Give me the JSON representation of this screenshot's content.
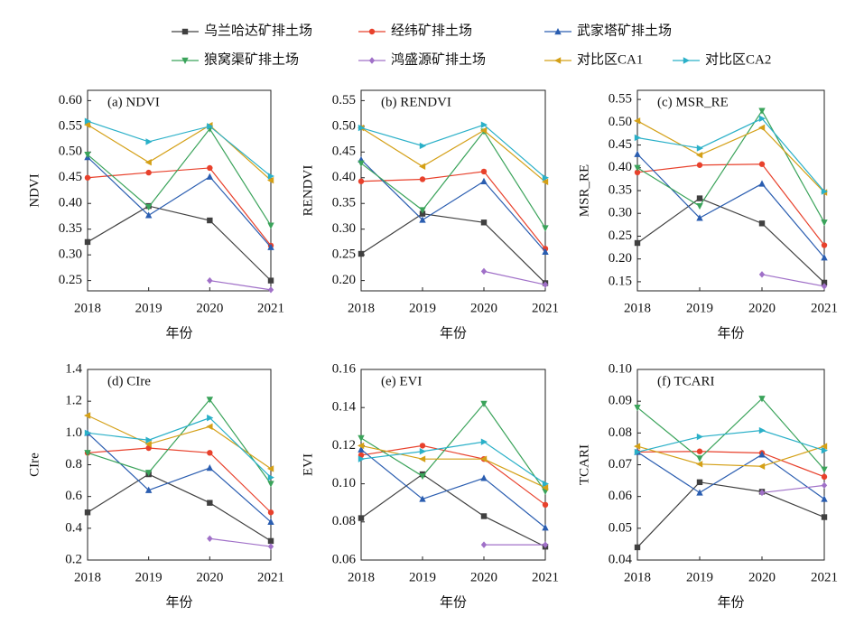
{
  "chart_data": [
    {
      "type": "line",
      "title": "(a) NDVI",
      "ylabel": "NDVI",
      "xlabel": "年份",
      "categories": [
        "2018",
        "2019",
        "2020",
        "2021"
      ],
      "ylim": [
        0.23,
        0.62
      ],
      "yticks": [
        0.25,
        {
          "value": 0.3,
          "label": "0.30"
        },
        0.35,
        {
          "value": 0.4,
          "label": "0.40"
        },
        0.45,
        {
          "value": 0.5,
          "label": "0.50"
        },
        0.55,
        {
          "value": 0.6,
          "label": "0.60"
        }
      ],
      "series": [
        {
          "name": "乌兰哈达矿排土场",
          "color": "#404040",
          "values": [
            0.325,
            0.395,
            0.367,
            0.25
          ]
        },
        {
          "name": "经纬矿排土场",
          "color": "#e8412c",
          "values": [
            0.45,
            0.46,
            0.469,
            0.318
          ]
        },
        {
          "name": "武家塔矿排土场",
          "color": "#2a5db0",
          "values": [
            0.49,
            0.377,
            0.452,
            0.315
          ]
        },
        {
          "name": "狼窝渠矿排土场",
          "color": "#3aa35a",
          "values": [
            0.495,
            0.393,
            0.545,
            0.357
          ]
        },
        {
          "name": "鸿盛源矿排土场",
          "color": "#a070c8",
          "values": [
            null,
            null,
            0.25,
            0.232
          ]
        },
        {
          "name": "对比区CA1",
          "color": "#d4a017",
          "values": [
            0.553,
            0.48,
            0.552,
            0.445
          ]
        },
        {
          "name": "对比区CA2",
          "color": "#2ab0c8",
          "values": [
            0.56,
            0.52,
            0.55,
            0.453
          ]
        }
      ]
    },
    {
      "type": "line",
      "title": "(b) RENDVI",
      "ylabel": "RENDVI",
      "xlabel": "年份",
      "categories": [
        "2018",
        "2019",
        "2020",
        "2021"
      ],
      "ylim": [
        0.18,
        0.57
      ],
      "yticks": [
        {
          "value": 0.2,
          "label": "0.20"
        },
        0.25,
        {
          "value": 0.3,
          "label": "0.30"
        },
        0.35,
        {
          "value": 0.4,
          "label": "0.40"
        },
        0.45,
        {
          "value": 0.5,
          "label": "0.50"
        },
        0.55
      ],
      "series": [
        {
          "color": "#404040",
          "values": [
            0.252,
            0.33,
            0.313,
            0.195
          ]
        },
        {
          "color": "#e8412c",
          "values": [
            0.393,
            0.397,
            0.412,
            0.262
          ]
        },
        {
          "color": "#2a5db0",
          "values": [
            0.435,
            0.318,
            0.393,
            0.256
          ]
        },
        {
          "color": "#3aa35a",
          "values": [
            0.428,
            0.337,
            0.49,
            0.302
          ]
        },
        {
          "color": "#a070c8",
          "values": [
            null,
            null,
            0.218,
            0.192
          ]
        },
        {
          "color": "#d4a017",
          "values": [
            0.497,
            0.422,
            0.492,
            0.392
          ]
        },
        {
          "color": "#2ab0c8",
          "values": [
            0.497,
            0.462,
            0.503,
            0.4
          ]
        }
      ]
    },
    {
      "type": "line",
      "title": "(c) MSR_RE",
      "ylabel": "MSR_RE",
      "xlabel": "年份",
      "categories": [
        "2018",
        "2019",
        "2020",
        "2021"
      ],
      "ylim": [
        0.13,
        0.57
      ],
      "yticks": [
        0.15,
        {
          "value": 0.2,
          "label": "0.20"
        },
        0.25,
        {
          "value": 0.3,
          "label": "0.30"
        },
        0.35,
        {
          "value": 0.4,
          "label": "0.40"
        },
        0.45,
        {
          "value": 0.5,
          "label": "0.50"
        },
        0.55
      ],
      "series": [
        {
          "color": "#404040",
          "values": [
            0.235,
            0.333,
            0.278,
            0.148
          ]
        },
        {
          "color": "#e8412c",
          "values": [
            0.39,
            0.406,
            0.408,
            0.23
          ]
        },
        {
          "color": "#2a5db0",
          "values": [
            0.43,
            0.29,
            0.365,
            0.203
          ]
        },
        {
          "color": "#3aa35a",
          "values": [
            0.4,
            0.316,
            0.525,
            0.28
          ]
        },
        {
          "color": "#a070c8",
          "values": [
            null,
            null,
            0.166,
            0.14
          ]
        },
        {
          "color": "#d4a017",
          "values": [
            0.503,
            0.428,
            0.488,
            0.346
          ]
        },
        {
          "color": "#2ab0c8",
          "values": [
            0.466,
            0.443,
            0.508,
            0.348
          ]
        }
      ]
    },
    {
      "type": "line",
      "title": "(d) CIre",
      "ylabel": "CIre",
      "xlabel": "年份",
      "categories": [
        "2018",
        "2019",
        "2020",
        "2021"
      ],
      "ylim": [
        0.2,
        1.4
      ],
      "yticks": [
        0.2,
        0.4,
        0.6,
        0.8,
        {
          "value": 1,
          "label": "1.0"
        },
        1.2,
        1.4
      ],
      "series": [
        {
          "color": "#404040",
          "values": [
            0.5,
            0.74,
            0.56,
            0.32
          ]
        },
        {
          "color": "#e8412c",
          "values": [
            0.875,
            0.905,
            0.875,
            0.5
          ]
        },
        {
          "color": "#2a5db0",
          "values": [
            1.0,
            0.64,
            0.78,
            0.44
          ]
        },
        {
          "color": "#3aa35a",
          "values": [
            0.875,
            0.75,
            1.21,
            0.68
          ]
        },
        {
          "color": "#a070c8",
          "values": [
            null,
            null,
            0.335,
            0.285
          ]
        },
        {
          "color": "#d4a017",
          "values": [
            1.11,
            0.93,
            1.04,
            0.775
          ]
        },
        {
          "color": "#2ab0c8",
          "values": [
            1.0,
            0.955,
            1.095,
            0.72
          ]
        }
      ]
    },
    {
      "type": "line",
      "title": "(e) EVI",
      "ylabel": "EVI",
      "xlabel": "年份",
      "categories": [
        "2018",
        "2019",
        "2020",
        "2021"
      ],
      "ylim": [
        0.06,
        0.16
      ],
      "yticks": [
        0.06,
        0.08,
        {
          "value": 0.1,
          "label": "0.10"
        },
        0.12,
        0.14,
        0.16
      ],
      "series": [
        {
          "color": "#404040",
          "values": [
            0.082,
            0.105,
            0.083,
            0.067
          ]
        },
        {
          "color": "#e8412c",
          "values": [
            0.115,
            0.12,
            0.113,
            0.089
          ]
        },
        {
          "color": "#2a5db0",
          "values": [
            0.118,
            0.092,
            0.103,
            0.077
          ]
        },
        {
          "color": "#3aa35a",
          "values": [
            0.124,
            0.104,
            0.142,
            0.096
          ]
        },
        {
          "color": "#a070c8",
          "values": [
            null,
            null,
            0.068,
            0.068
          ]
        },
        {
          "color": "#d4a017",
          "values": [
            0.12,
            0.113,
            0.113,
            0.098
          ]
        },
        {
          "color": "#2ab0c8",
          "values": [
            0.113,
            0.117,
            0.122,
            0.1
          ]
        }
      ]
    },
    {
      "type": "line",
      "title": "(f) TCARI",
      "ylabel": "TCARI",
      "xlabel": "年份",
      "categories": [
        "2018",
        "2019",
        "2020",
        "2021"
      ],
      "ylim": [
        0.04,
        0.1
      ],
      "yticks": [
        0.04,
        0.05,
        0.06,
        0.07,
        0.08,
        0.09,
        {
          "value": 0.1,
          "label": "0.10"
        }
      ],
      "series": [
        {
          "color": "#404040",
          "values": [
            0.044,
            0.0645,
            0.0615,
            0.0535
          ]
        },
        {
          "color": "#e8412c",
          "values": [
            0.074,
            0.0742,
            0.0737,
            0.0662
          ]
        },
        {
          "color": "#2a5db0",
          "values": [
            0.074,
            0.0612,
            0.0732,
            0.0592
          ]
        },
        {
          "color": "#3aa35a",
          "values": [
            0.088,
            0.072,
            0.0908,
            0.0685
          ]
        },
        {
          "color": "#a070c8",
          "values": [
            null,
            null,
            0.0612,
            0.0635
          ]
        },
        {
          "color": "#d4a017",
          "values": [
            0.0758,
            0.0702,
            0.0695,
            0.0758
          ]
        },
        {
          "color": "#2ab0c8",
          "values": [
            0.074,
            0.0788,
            0.0808,
            0.0745
          ]
        }
      ]
    }
  ]
}
